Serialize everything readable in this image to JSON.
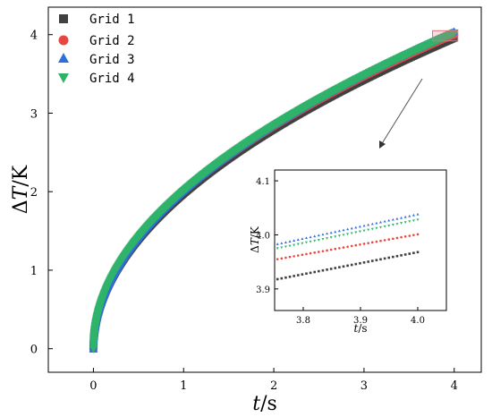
{
  "chart_data": {
    "type": "scatter",
    "xlabel_var": "t",
    "xlabel_unit": "/s",
    "ylabel_prefix": "Δ",
    "ylabel_var": "T",
    "ylabel_unit": "/K",
    "xlim": [
      -0.5,
      4.3
    ],
    "ylim": [
      -0.3,
      4.35
    ],
    "xticks": [
      0,
      1,
      2,
      3,
      4
    ],
    "yticks": [
      0,
      1,
      2,
      3,
      4
    ],
    "legend_position": "top-left",
    "grid": false,
    "series": [
      {
        "name": "Grid 1",
        "marker": "square",
        "color": "#404040",
        "k": 1.98,
        "gamma": 0.5
      },
      {
        "name": "Grid 2",
        "marker": "circle",
        "color": "#e8473f",
        "k": 2.0,
        "gamma": 0.5
      },
      {
        "name": "Grid 3",
        "marker": "triangle-up",
        "color": "#2f6fdd",
        "k": 2.018,
        "gamma": 0.5
      },
      {
        "name": "Grid 4",
        "marker": "triangle-down",
        "color": "#2fb36b",
        "k": 2.012,
        "gamma": 0.5
      }
    ],
    "inset": {
      "xlabel_var": "t",
      "xlabel_unit": "/s",
      "ylabel_prefix": "Δ",
      "ylabel_var": "T",
      "ylabel_unit": "/K",
      "xlim": [
        3.75,
        4.05
      ],
      "ylim": [
        3.86,
        4.12
      ],
      "xticks": [
        "3.8",
        "3.9",
        "4.0"
      ],
      "yticks": [
        "3.9",
        "4.0",
        "4.1"
      ],
      "series_lines": [
        {
          "name": "Grid 1",
          "y_start": 3.918,
          "y_end": 3.968
        },
        {
          "name": "Grid 2",
          "y_start": 3.955,
          "y_end": 4.001
        },
        {
          "name": "Grid 3",
          "y_start": 3.983,
          "y_end": 4.038
        },
        {
          "name": "Grid 4",
          "y_start": 3.975,
          "y_end": 4.028
        }
      ],
      "zoom_region": {
        "x": [
          3.76,
          4.04
        ],
        "y": [
          3.92,
          4.05
        ]
      }
    }
  }
}
